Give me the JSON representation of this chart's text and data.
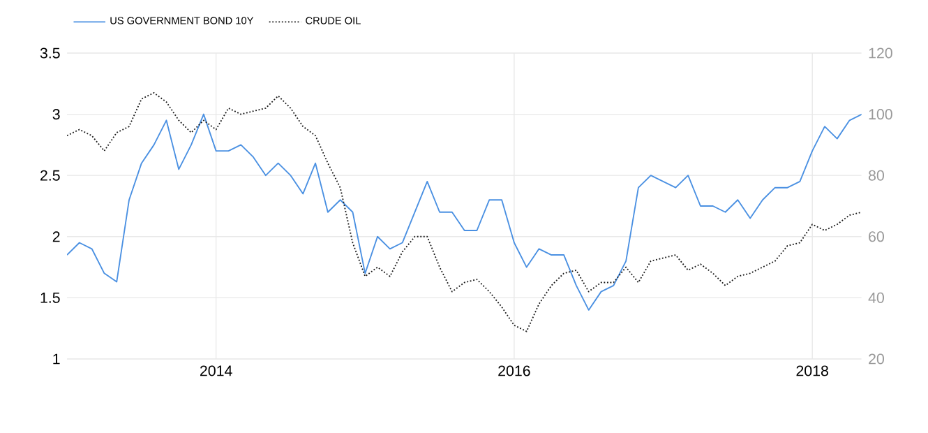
{
  "chart_data": {
    "type": "line",
    "x": [
      "2013-01",
      "2013-02",
      "2013-03",
      "2013-04",
      "2013-05",
      "2013-06",
      "2013-07",
      "2013-08",
      "2013-09",
      "2013-10",
      "2013-11",
      "2013-12",
      "2014-01",
      "2014-02",
      "2014-03",
      "2014-04",
      "2014-05",
      "2014-06",
      "2014-07",
      "2014-08",
      "2014-09",
      "2014-10",
      "2014-11",
      "2014-12",
      "2015-01",
      "2015-02",
      "2015-03",
      "2015-04",
      "2015-05",
      "2015-06",
      "2015-07",
      "2015-08",
      "2015-09",
      "2015-10",
      "2015-11",
      "2015-12",
      "2016-01",
      "2016-02",
      "2016-03",
      "2016-04",
      "2016-05",
      "2016-06",
      "2016-07",
      "2016-08",
      "2016-09",
      "2016-10",
      "2016-11",
      "2016-12",
      "2017-01",
      "2017-02",
      "2017-03",
      "2017-04",
      "2017-05",
      "2017-06",
      "2017-07",
      "2017-08",
      "2017-09",
      "2017-10",
      "2017-11",
      "2017-12",
      "2018-01",
      "2018-02",
      "2018-03",
      "2018-04",
      "2018-05"
    ],
    "series": [
      {
        "name": "US GOVERNMENT BOND 10Y",
        "color": "#4a90e2",
        "line_style": "solid",
        "values": [
          1.85,
          1.95,
          1.9,
          1.7,
          1.63,
          2.3,
          2.6,
          2.75,
          2.95,
          2.55,
          2.75,
          3.0,
          2.7,
          2.7,
          2.75,
          2.65,
          2.5,
          2.6,
          2.5,
          2.35,
          2.6,
          2.2,
          2.3,
          2.2,
          1.7,
          2.0,
          1.9,
          1.95,
          2.2,
          2.45,
          2.2,
          2.2,
          2.05,
          2.05,
          2.3,
          2.3,
          1.95,
          1.75,
          1.9,
          1.85,
          1.85,
          1.6,
          1.4,
          1.55,
          1.6,
          1.8,
          2.4,
          2.5,
          2.45,
          2.4,
          2.5,
          2.25,
          2.25,
          2.2,
          2.3,
          2.15,
          2.3,
          2.4,
          2.4,
          2.45,
          2.7,
          2.9,
          2.8,
          2.95,
          3.0
        ]
      },
      {
        "name": "CRUDE OIL",
        "color": "#1a1a1a",
        "line_style": "dotted",
        "axis": "y2",
        "values": [
          93,
          95,
          93,
          88,
          94,
          96,
          105,
          107,
          104,
          98,
          94,
          98,
          95,
          102,
          100,
          101,
          102,
          106,
          102,
          96,
          93,
          84,
          76,
          58,
          47,
          50,
          47,
          55,
          60,
          60,
          50,
          42,
          45,
          46,
          42,
          37,
          31,
          29,
          38,
          44,
          48,
          49,
          42,
          45,
          45,
          50,
          45,
          52,
          53,
          54,
          49,
          51,
          48,
          44,
          47,
          48,
          50,
          52,
          57,
          58,
          64,
          62,
          64,
          67,
          68
        ]
      }
    ],
    "xlim": [
      "2013-01",
      "2018-05"
    ],
    "xticks": [
      "2014",
      "2016",
      "2018"
    ],
    "ylim": [
      1,
      3.5
    ],
    "yticks": [
      1,
      1.5,
      2,
      2.5,
      3,
      3.5
    ],
    "y2lim": [
      20,
      120
    ],
    "y2ticks": [
      20,
      40,
      60,
      80,
      100,
      120
    ],
    "grid": true,
    "legend": "top left",
    "marker": "none"
  }
}
